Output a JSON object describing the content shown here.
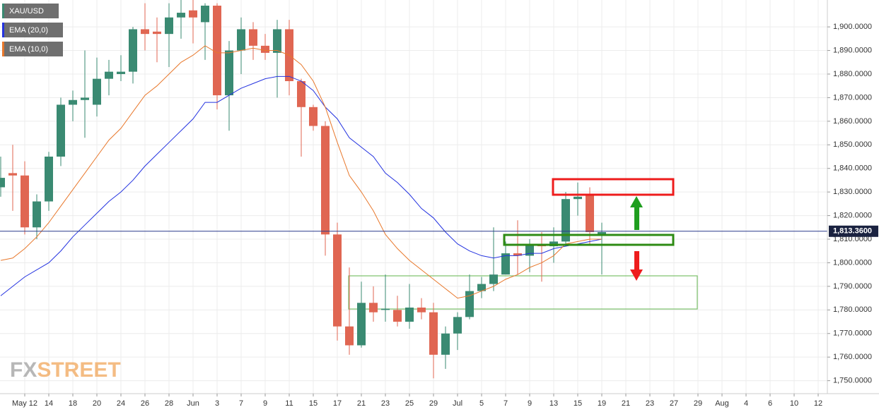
{
  "chart_data": {
    "type": "candlestick",
    "symbol": "XAU/USD",
    "watermark": [
      "FX",
      "STREET"
    ],
    "categories": [
      null,
      null,
      "May 12",
      null,
      "14",
      null,
      "18",
      null,
      "20",
      null,
      "24",
      null,
      "26",
      null,
      "28",
      null,
      "Jun",
      null,
      "3",
      null,
      "7",
      null,
      "9",
      null,
      "11",
      null,
      "15",
      null,
      "17",
      null,
      "21",
      null,
      "23",
      null,
      "25",
      null,
      "29",
      null,
      "Jul",
      null,
      "5",
      null,
      "7",
      null,
      "9",
      null,
      "13",
      null,
      "15",
      null,
      "19",
      null,
      "21",
      null,
      "23",
      null,
      "27",
      null,
      "29",
      null,
      "Aug",
      null,
      "4",
      null,
      "6",
      null,
      "10",
      null,
      "12"
    ],
    "open": [
      1832,
      1838,
      1837,
      1815,
      1826,
      1845,
      1867,
      1869,
      1867,
      1878,
      1880,
      1881,
      1899,
      1898,
      1897,
      1904,
      1907,
      1902,
      1909,
      1871,
      1890,
      1899,
      1892,
      1889,
      1899,
      1877,
      1866,
      1858,
      1812,
      1773,
      1765,
      1783,
      1780,
      1780,
      1775,
      1781,
      1779,
      1761,
      1770,
      1777,
      1788,
      1791,
      1795,
      1804,
      1803,
      1808,
      1807,
      1809,
      1827,
      1829,
      1812,
      null,
      null,
      null,
      null,
      null,
      null,
      null,
      null,
      null,
      null,
      null,
      null,
      null,
      null,
      null,
      null,
      null,
      null
    ],
    "high": [
      1845,
      1850,
      1843,
      1829,
      1847,
      1870,
      1873,
      1890,
      1887,
      1886,
      1888,
      1900,
      1910,
      1904,
      1910,
      1916,
      1916,
      1910,
      1910,
      1894,
      1904,
      1902,
      1897,
      1903,
      1903,
      1878,
      1867,
      1860,
      1817,
      1798,
      1792,
      1790,
      1795,
      1786,
      1791,
      1785,
      1783,
      1773,
      1779,
      1795,
      1794,
      1815,
      1809,
      1818,
      1810,
      1813,
      1815,
      1830,
      1834,
      1832,
      1817,
      null,
      null,
      null,
      null,
      null,
      null,
      null,
      null,
      null,
      null,
      null,
      null,
      null,
      null,
      null,
      null,
      null,
      null
    ],
    "low": [
      1828,
      1822,
      1812,
      1810,
      1822,
      1841,
      1860,
      1853,
      1862,
      1871,
      1877,
      1876,
      1890,
      1885,
      1883,
      1895,
      1893,
      1886,
      1865,
      1856,
      1880,
      1886,
      1886,
      1870,
      1871,
      1845,
      1856,
      1803,
      1767,
      1761,
      1764,
      1775,
      1775,
      1773,
      1772,
      1776,
      1751,
      1755,
      1763,
      1776,
      1785,
      1788,
      1795,
      1795,
      1796,
      1792,
      1800,
      1807,
      1820,
      1808,
      1795,
      null,
      null,
      null,
      null,
      null,
      null,
      null,
      null,
      null,
      null,
      null,
      null,
      null,
      null,
      null,
      null,
      null,
      null
    ],
    "close": [
      1836,
      1837,
      1815,
      1826,
      1845,
      1867,
      1869,
      1870,
      1878,
      1881,
      1881,
      1899,
      1897,
      1897,
      1904,
      1906,
      1904,
      1909,
      1871,
      1890,
      1899,
      1892,
      1889,
      1899,
      1877,
      1866,
      1858,
      1812,
      1773,
      1765,
      1783,
      1779,
      1780.5,
      1775,
      1781,
      1779,
      1761,
      1770,
      1777,
      1788,
      1791,
      1795,
      1804,
      1803,
      1808,
      1807,
      1809,
      1827,
      1828,
      1813,
      1813,
      null,
      null,
      null,
      null,
      null,
      null,
      null,
      null,
      null,
      null,
      null,
      null,
      null,
      null,
      null,
      null,
      null,
      null
    ],
    "up_color": "#3a8a72",
    "down_color": "#e06652",
    "series": [
      {
        "name": "EMA (20,0)",
        "color": "#2433e0",
        "values": [
          1786,
          1790,
          1794,
          1797,
          1800,
          1805,
          1811,
          1816,
          1821,
          1826,
          1830,
          1835,
          1841,
          1846,
          1851,
          1856,
          1861,
          1868,
          1868,
          1871,
          1874,
          1876,
          1878,
          1879,
          1879,
          1877,
          1873,
          1866,
          1861,
          1853,
          1849,
          1845,
          1838,
          1834,
          1829,
          1823,
          1819,
          1813,
          1808,
          1805,
          1803,
          1802,
          1803,
          1803,
          1804,
          1804,
          1806,
          1807,
          1808,
          1809,
          1810,
          null,
          null,
          null,
          null,
          null,
          null,
          null,
          null,
          null,
          null,
          null,
          null,
          null,
          null,
          null,
          null,
          null,
          null
        ]
      },
      {
        "name": "EMA (10,0)",
        "color": "#e8782c",
        "values": [
          1801,
          1802,
          1806,
          1811,
          1817,
          1824,
          1831,
          1838,
          1845,
          1852,
          1857,
          1864,
          1871,
          1875,
          1880,
          1885,
          1888,
          1892,
          1889,
          1889,
          1890,
          1891,
          1890,
          1890,
          1888,
          1884,
          1877,
          1866,
          1851,
          1837,
          1830,
          1822,
          1812,
          1806,
          1801,
          1797,
          1793,
          1789,
          1785,
          1786,
          1788,
          1790,
          1793,
          1795,
          1798,
          1800,
          1803,
          1808,
          1809,
          1810,
          1810,
          null,
          null,
          null,
          null,
          null,
          null,
          null,
          null,
          null,
          null,
          null,
          null,
          null,
          null,
          null,
          null,
          null,
          null
        ]
      }
    ],
    "last_price": {
      "value": 1813.36,
      "label": "1,813.3600"
    },
    "ylim": [
      1744.5,
      1911.4
    ],
    "yticks": [
      {
        "value": 1750,
        "label": "1,750.0000"
      },
      {
        "value": 1760,
        "label": "1,760.0000"
      },
      {
        "value": 1770,
        "label": "1,770.0000"
      },
      {
        "value": 1780,
        "label": "1,780.0000"
      },
      {
        "value": 1790,
        "label": "1,790.0000"
      },
      {
        "value": 1800,
        "label": "1,800.0000"
      },
      {
        "value": 1810,
        "label": "1,810.0000"
      },
      {
        "value": 1820,
        "label": "1,820.0000"
      },
      {
        "value": 1830,
        "label": "1,830.0000"
      },
      {
        "value": 1840,
        "label": "1,840.0000"
      },
      {
        "value": 1850,
        "label": "1,850.0000"
      },
      {
        "value": 1860,
        "label": "1,860.0000"
      },
      {
        "value": 1870,
        "label": "1,870.0000"
      },
      {
        "value": 1880,
        "label": "1,880.0000"
      },
      {
        "value": 1890,
        "label": "1,890.0000"
      },
      {
        "value": 1900,
        "label": "1,900.0000"
      }
    ],
    "grid": true
  }
}
